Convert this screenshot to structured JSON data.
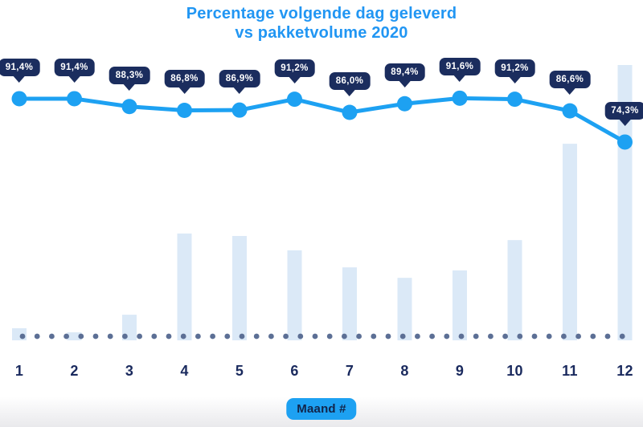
{
  "title": {
    "line1": "Percentage volgende dag geleverd",
    "line2": "vs pakketvolume 2020"
  },
  "x_axis_badge": "Maand #",
  "colors": {
    "title_blue": "#2196f3",
    "accent_blue": "#1da1f2",
    "tooltip_navy": "#1b2d5e",
    "label_navy": "#1a2a5e",
    "bar_light_blue": "#dbe9f7",
    "dotted_slate": "#5c6f95",
    "bottom_fade": "#e9e9ec"
  },
  "chart_data": {
    "type": "line",
    "subtype": "combo-line-plus-bar",
    "title": "Percentage volgende dag geleverd vs pakketvolume 2020",
    "xlabel": "Maand #",
    "categories": [
      "1",
      "2",
      "3",
      "4",
      "5",
      "6",
      "7",
      "8",
      "9",
      "10",
      "11",
      "12"
    ],
    "grid": false,
    "legend_position": "none",
    "dotted_baseline": true,
    "series": [
      {
        "name": "Percentage volgende dag geleverd",
        "type": "line",
        "unit": "%",
        "ylim": [
          70,
          95
        ],
        "values": [
          91.4,
          91.4,
          88.3,
          86.8,
          86.9,
          91.2,
          86.0,
          89.4,
          91.6,
          91.2,
          86.6,
          74.3
        ],
        "labels": [
          "91,4%",
          "91,4%",
          "88,3%",
          "86,8%",
          "86,9%",
          "91,2%",
          "86,0%",
          "89,4%",
          "91,6%",
          "91,2%",
          "86,6%",
          "74,3%"
        ]
      },
      {
        "name": "Pakketvolume 2020",
        "type": "bar",
        "unit": "relative index (December = 100, estimated from bar heights, axis unlabeled)",
        "values": [
          4.4,
          2.9,
          9.3,
          38.8,
          37.9,
          32.7,
          26.5,
          22.7,
          25.4,
          36.4,
          71.4,
          100
        ]
      }
    ]
  }
}
